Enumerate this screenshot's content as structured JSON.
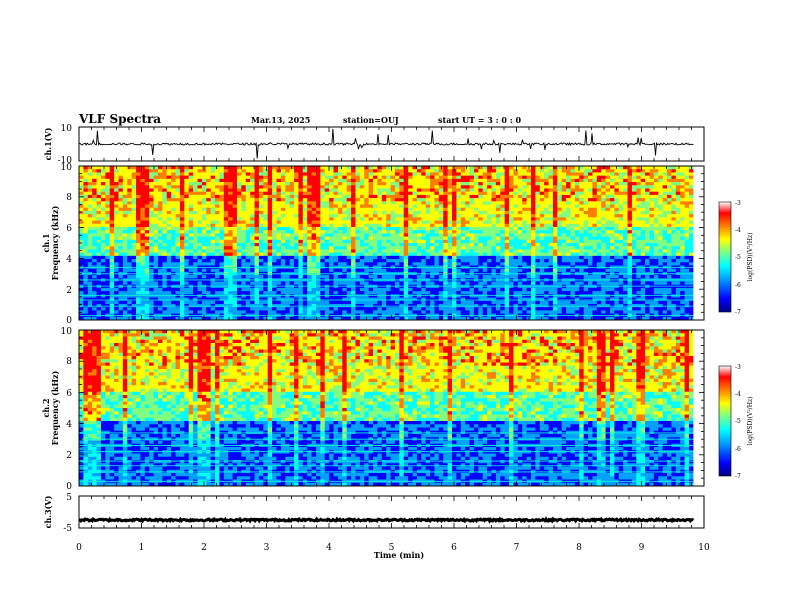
{
  "header": {
    "title": "VLF Spectra",
    "date": "Mar.13, 2025",
    "station": "station=OUJ",
    "start": "start UT = 3 : 0 : 0"
  },
  "colors": {
    "colormap": [
      "#000080",
      "#0000ff",
      "#00a0ff",
      "#00ffff",
      "#80ff80",
      "#ffff00",
      "#ff8000",
      "#ff0000",
      "#ffffff"
    ],
    "trace": "#000000"
  },
  "chart_data": [
    {
      "type": "line",
      "panel": "ch1-waveform",
      "ylabel": "ch.1(V)",
      "ylim": [
        -10,
        10
      ],
      "yticks": [
        "10",
        "-10"
      ],
      "baseline": 0
    },
    {
      "type": "heatmap",
      "panel": "ch1-spectrogram",
      "ylabel_top": "ch.1",
      "ylabel": "Frequency (kHz)",
      "ylim": [
        0,
        10
      ],
      "yticks": [
        "0",
        "2",
        "4",
        "6",
        "8",
        "10"
      ],
      "x_range_min": [
        0,
        9.83
      ],
      "colorbar": {
        "label": "log(PSD)(V²/Hz)",
        "range": [
          -7,
          -3
        ],
        "ticks": [
          "-3",
          "-4",
          "-5",
          "-6",
          "-7"
        ]
      }
    },
    {
      "type": "heatmap",
      "panel": "ch2-spectrogram",
      "ylabel_top": "ch.2",
      "ylabel": "Frequency (kHz)",
      "ylim": [
        0,
        10
      ],
      "yticks": [
        "0",
        "2",
        "4",
        "6",
        "8",
        "10"
      ],
      "x_range_min": [
        0,
        9.83
      ],
      "colorbar": {
        "label": "log(PSD)(V²/Hz)",
        "range": [
          -7,
          -3
        ],
        "ticks": [
          "-3",
          "-4",
          "-5",
          "-6",
          "-7"
        ]
      }
    },
    {
      "type": "line",
      "panel": "ch3-waveform",
      "ylabel": "ch.3(V)",
      "ylim": [
        -5,
        5
      ],
      "yticks": [
        "5",
        "-5"
      ],
      "baseline": -2.5
    }
  ],
  "xaxis": {
    "label": "Time (min)",
    "xlim": [
      0,
      10
    ],
    "ticks": [
      "0",
      "1",
      "2",
      "3",
      "4",
      "5",
      "6",
      "7",
      "8",
      "9",
      "10"
    ]
  }
}
